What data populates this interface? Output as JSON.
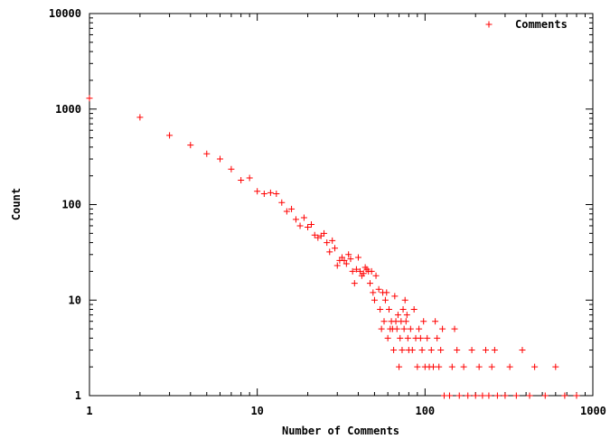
{
  "chart_data": {
    "type": "scatter",
    "title": "",
    "xlabel": "Number of Comments",
    "ylabel": "Count",
    "xscale": "log",
    "yscale": "log",
    "xlim": [
      1,
      1000
    ],
    "ylim": [
      1,
      10000
    ],
    "grid": false,
    "legend_position": "top-right",
    "marker": "plus",
    "series_color": "#ff0000",
    "x_ticks": [
      {
        "value": 1,
        "label": "1"
      },
      {
        "value": 10,
        "label": "10"
      },
      {
        "value": 100,
        "label": "100"
      },
      {
        "value": 1000,
        "label": "1000"
      }
    ],
    "y_ticks": [
      {
        "value": 1,
        "label": "1"
      },
      {
        "value": 10,
        "label": "10"
      },
      {
        "value": 100,
        "label": "100"
      },
      {
        "value": 1000,
        "label": "1000"
      },
      {
        "value": 10000,
        "label": "10000"
      }
    ],
    "series": [
      {
        "name": "Comments",
        "points": [
          [
            1,
            1300
          ],
          [
            2,
            820
          ],
          [
            3,
            530
          ],
          [
            4,
            420
          ],
          [
            5,
            340
          ],
          [
            6,
            300
          ],
          [
            7,
            235
          ],
          [
            8,
            180
          ],
          [
            9,
            190
          ],
          [
            10,
            138
          ],
          [
            11,
            130
          ],
          [
            12,
            133
          ],
          [
            13,
            130
          ],
          [
            14,
            105
          ],
          [
            15,
            85
          ],
          [
            16,
            90
          ],
          [
            17,
            70
          ],
          [
            18,
            60
          ],
          [
            19,
            73
          ],
          [
            20,
            58
          ],
          [
            21,
            62
          ],
          [
            22,
            48
          ],
          [
            23,
            45
          ],
          [
            24,
            47
          ],
          [
            25,
            50
          ],
          [
            26,
            40
          ],
          [
            27,
            32
          ],
          [
            28,
            42
          ],
          [
            29,
            35
          ],
          [
            30,
            23
          ],
          [
            31,
            26
          ],
          [
            32,
            28
          ],
          [
            33,
            26
          ],
          [
            34,
            24
          ],
          [
            35,
            30
          ],
          [
            36,
            27
          ],
          [
            37,
            20
          ],
          [
            38,
            15
          ],
          [
            39,
            21
          ],
          [
            40,
            28
          ],
          [
            41,
            20
          ],
          [
            42,
            18
          ],
          [
            43,
            19
          ],
          [
            44,
            22
          ],
          [
            45,
            21
          ],
          [
            46,
            20
          ],
          [
            47,
            15
          ],
          [
            48,
            20
          ],
          [
            49,
            12
          ],
          [
            50,
            10
          ],
          [
            51,
            18
          ],
          [
            53,
            13
          ],
          [
            54,
            8
          ],
          [
            55,
            5
          ],
          [
            56,
            12
          ],
          [
            57,
            6
          ],
          [
            58,
            10
          ],
          [
            59,
            12
          ],
          [
            60,
            4
          ],
          [
            61,
            8
          ],
          [
            62,
            5
          ],
          [
            63,
            6
          ],
          [
            64,
            5
          ],
          [
            65,
            3
          ],
          [
            66,
            11
          ],
          [
            67,
            6
          ],
          [
            68,
            5
          ],
          [
            69,
            7
          ],
          [
            70,
            2
          ],
          [
            71,
            4
          ],
          [
            72,
            6
          ],
          [
            73,
            3
          ],
          [
            74,
            8
          ],
          [
            75,
            5
          ],
          [
            76,
            10
          ],
          [
            77,
            6
          ],
          [
            78,
            7
          ],
          [
            79,
            4
          ],
          [
            80,
            3
          ],
          [
            82,
            5
          ],
          [
            84,
            3
          ],
          [
            86,
            8
          ],
          [
            88,
            4
          ],
          [
            90,
            2
          ],
          [
            92,
            5
          ],
          [
            94,
            4
          ],
          [
            96,
            3
          ],
          [
            98,
            6
          ],
          [
            100,
            2
          ],
          [
            103,
            4
          ],
          [
            106,
            2
          ],
          [
            109,
            3
          ],
          [
            112,
            2
          ],
          [
            115,
            6
          ],
          [
            118,
            4
          ],
          [
            121,
            2
          ],
          [
            124,
            3
          ],
          [
            127,
            5
          ],
          [
            130,
            1
          ],
          [
            140,
            1
          ],
          [
            145,
            2
          ],
          [
            150,
            5
          ],
          [
            155,
            3
          ],
          [
            160,
            1
          ],
          [
            170,
            2
          ],
          [
            180,
            1
          ],
          [
            190,
            3
          ],
          [
            200,
            1
          ],
          [
            210,
            2
          ],
          [
            220,
            1
          ],
          [
            230,
            3
          ],
          [
            240,
            1
          ],
          [
            250,
            2
          ],
          [
            260,
            3
          ],
          [
            270,
            1
          ],
          [
            300,
            1
          ],
          [
            320,
            2
          ],
          [
            350,
            1
          ],
          [
            380,
            3
          ],
          [
            420,
            1
          ],
          [
            450,
            2
          ],
          [
            520,
            1
          ],
          [
            600,
            2
          ],
          [
            680,
            1
          ],
          [
            800,
            1
          ]
        ]
      }
    ]
  }
}
